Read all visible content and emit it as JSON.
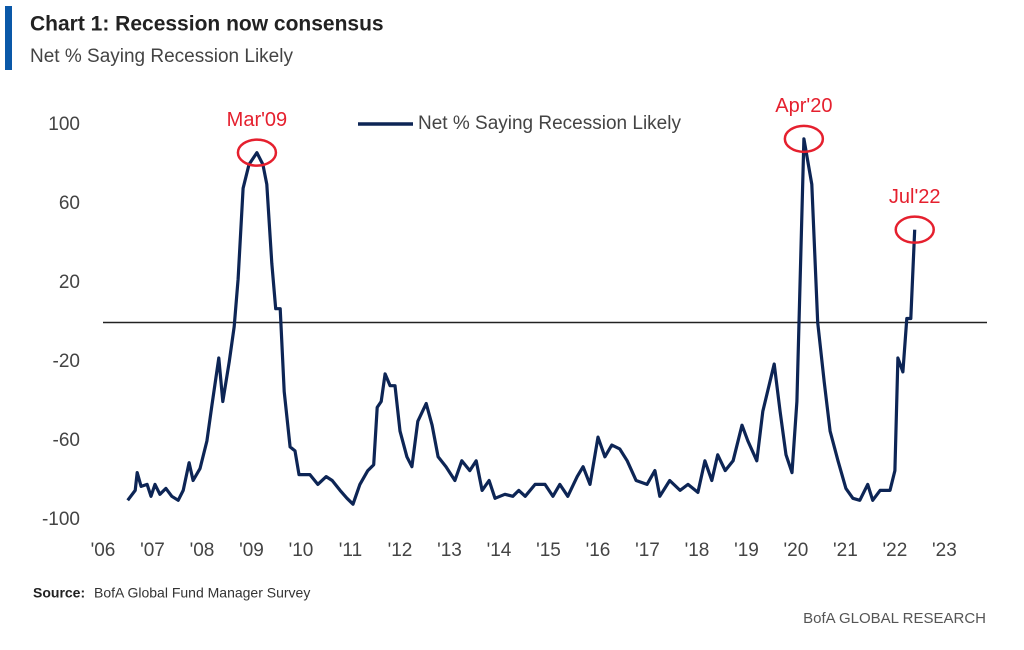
{
  "chart_data": {
    "type": "line",
    "title": "Chart 1: Recession now consensus",
    "subtitle": "Net % Saying Recession Likely",
    "source_label": "Source:",
    "source": "BofA Global Fund Manager Survey",
    "footer": "BofA GLOBAL RESEARCH",
    "legend": "top",
    "hline": 0,
    "xlim": [
      2006,
      2023.86
    ],
    "ylim": [
      -100,
      100
    ],
    "yticks": [
      100,
      60,
      20,
      -20,
      -60,
      -100
    ],
    "xticks": [
      {
        "value": 2006,
        "label": "'06"
      },
      {
        "value": 2007,
        "label": "'07"
      },
      {
        "value": 2008,
        "label": "'08"
      },
      {
        "value": 2009,
        "label": "'09"
      },
      {
        "value": 2010,
        "label": "'10"
      },
      {
        "value": 2011,
        "label": "'11"
      },
      {
        "value": 2012,
        "label": "'12"
      },
      {
        "value": 2013,
        "label": "'13"
      },
      {
        "value": 2014,
        "label": "'14"
      },
      {
        "value": 2015,
        "label": "'15"
      },
      {
        "value": 2016,
        "label": "'16"
      },
      {
        "value": 2017,
        "label": "'17"
      },
      {
        "value": 2018,
        "label": "'18"
      },
      {
        "value": 2019,
        "label": "'19"
      },
      {
        "value": 2020,
        "label": "'20"
      },
      {
        "value": 2021,
        "label": "'21"
      },
      {
        "value": 2022,
        "label": "'22"
      },
      {
        "value": 2023,
        "label": "'23"
      }
    ],
    "x": [
      2006.5,
      2006.65,
      2006.69,
      2006.77,
      2006.89,
      2006.97,
      2007.05,
      2007.15,
      2007.27,
      2007.39,
      2007.52,
      2007.62,
      2007.74,
      2007.82,
      2007.96,
      2008.1,
      2008.2,
      2008.34,
      2008.42,
      2008.55,
      2008.65,
      2008.73,
      2008.83,
      2008.95,
      2009.11,
      2009.23,
      2009.31,
      2009.41,
      2009.49,
      2009.58,
      2009.66,
      2009.78,
      2009.88,
      2009.96,
      2010.18,
      2010.34,
      2010.51,
      2010.63,
      2010.79,
      2010.93,
      2011.05,
      2011.19,
      2011.35,
      2011.47,
      2011.54,
      2011.62,
      2011.7,
      2011.8,
      2011.9,
      2012.0,
      2012.14,
      2012.24,
      2012.36,
      2012.53,
      2012.65,
      2012.77,
      2012.93,
      2013.11,
      2013.25,
      2013.41,
      2013.54,
      2013.66,
      2013.8,
      2013.92,
      2014.12,
      2014.28,
      2014.4,
      2014.53,
      2014.73,
      2014.93,
      2015.09,
      2015.23,
      2015.39,
      2015.58,
      2015.7,
      2015.84,
      2016.0,
      2016.14,
      2016.28,
      2016.44,
      2016.59,
      2016.77,
      2016.99,
      2017.15,
      2017.25,
      2017.45,
      2017.66,
      2017.82,
      2018.02,
      2018.16,
      2018.3,
      2018.42,
      2018.57,
      2018.73,
      2018.91,
      2019.03,
      2019.21,
      2019.33,
      2019.56,
      2019.68,
      2019.8,
      2019.92,
      2020.02,
      2020.16,
      2020.32,
      2020.44,
      2020.57,
      2020.69,
      2020.85,
      2021.01,
      2021.15,
      2021.29,
      2021.45,
      2021.55,
      2021.7,
      2021.9,
      2022.0,
      2022.06,
      2022.16,
      2022.24,
      2022.32,
      2022.4
    ],
    "series": [
      {
        "name": "Net % Saying Recession Likely",
        "color": "#0d2555",
        "values": [
          -90,
          -85,
          -76,
          -83,
          -82,
          -88,
          -82,
          -87,
          -84,
          -88,
          -90,
          -85,
          -71,
          -80,
          -74,
          -60,
          -42,
          -18,
          -40,
          -20,
          -2,
          22,
          68,
          80,
          86,
          80,
          70,
          30,
          7,
          7,
          -35,
          -63,
          -65,
          -77,
          -77,
          -82,
          -78,
          -80,
          -85,
          -89,
          -92,
          -82,
          -75,
          -72,
          -43,
          -40,
          -26,
          -32,
          -32,
          -55,
          -68,
          -73,
          -50,
          -41,
          -52,
          -68,
          -73,
          -80,
          -70,
          -75,
          -70,
          -85,
          -80,
          -89,
          -87,
          -88,
          -85,
          -88,
          -82,
          -82,
          -88,
          -82,
          -88,
          -78,
          -73,
          -82,
          -58,
          -68,
          -62,
          -64,
          -70,
          -80,
          -82,
          -75,
          -88,
          -80,
          -85,
          -82,
          -86,
          -70,
          -80,
          -67,
          -75,
          -70,
          -52,
          -60,
          -70,
          -45,
          -21,
          -45,
          -67,
          -76,
          -40,
          93,
          70,
          0,
          -30,
          -55,
          -70,
          -84,
          -89,
          -90,
          -82,
          -90,
          -85,
          -85,
          -75,
          -18,
          -25,
          2,
          2,
          47
        ]
      }
    ],
    "annotations": [
      {
        "text": "Mar'09",
        "x": 2009.11,
        "y": 86
      },
      {
        "text": "Apr'20",
        "x": 2020.16,
        "y": 93
      },
      {
        "text": "Jul'22",
        "x": 2022.4,
        "y": 47
      }
    ],
    "annotation_color": "#e5202e"
  }
}
